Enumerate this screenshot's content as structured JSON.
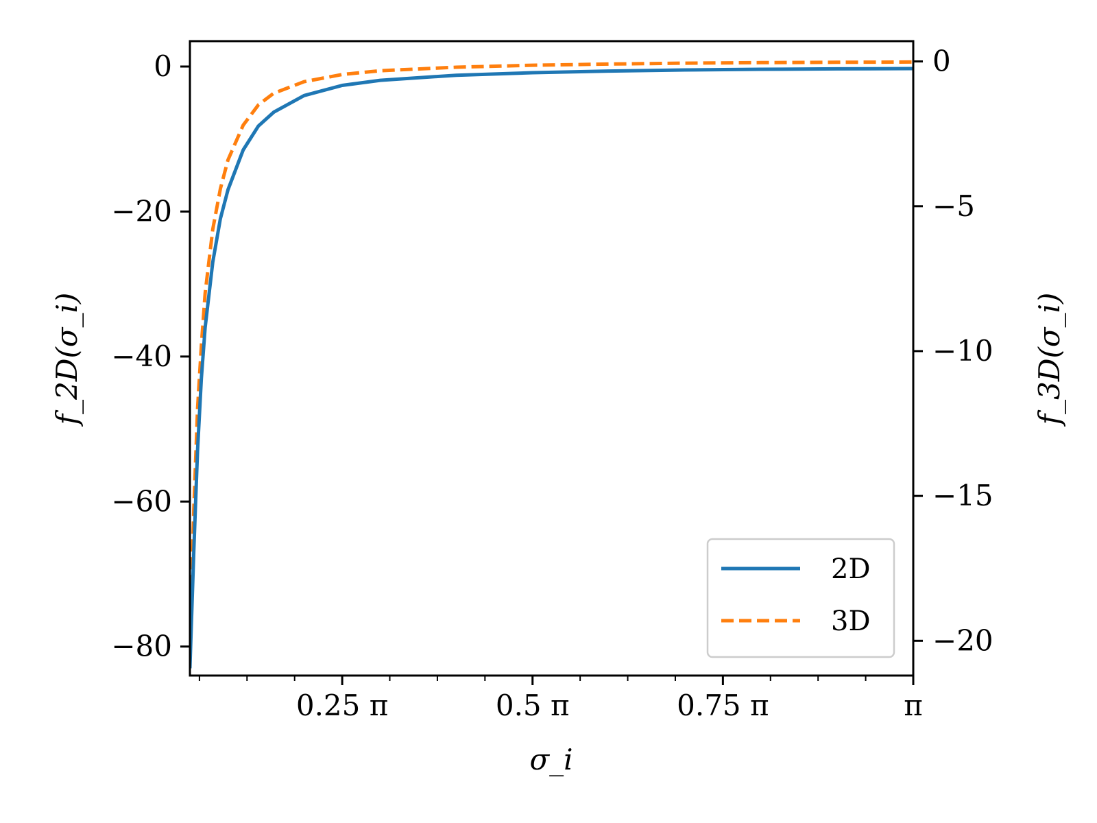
{
  "chart_data": {
    "type": "line",
    "title": "",
    "xlabel": "σ_i",
    "ylabel_left": "f_2D(σ_i)",
    "ylabel_right": "f_3D(σ_i)",
    "x_tick_labels": [
      "0.25 π",
      "0.5 π",
      "0.75 π",
      "π"
    ],
    "x_tick_values": [
      0.25,
      0.5,
      0.75,
      1.0
    ],
    "x_unit": "π",
    "xlim": [
      0.05,
      1.0
    ],
    "y_left_ticks": [
      0,
      -20,
      -40,
      -60,
      -80
    ],
    "y_left_tick_labels": [
      "0",
      "−20",
      "−40",
      "−60",
      "−80"
    ],
    "y_left_lim": [
      -84,
      3.5
    ],
    "y_right_ticks": [
      0,
      -5,
      -10,
      -15,
      -20
    ],
    "y_right_tick_labels": [
      "0",
      "−5",
      "−10",
      "−15",
      "−20"
    ],
    "y_right_lim": [
      -21.2,
      0.7
    ],
    "grid": false,
    "legend_position": "bottom-right",
    "series": [
      {
        "name": "2D",
        "axis": "left",
        "color": "#1f77b4",
        "style": "solid",
        "x": [
          0.05,
          0.055,
          0.06,
          0.065,
          0.07,
          0.08,
          0.09,
          0.1,
          0.12,
          0.14,
          0.16,
          0.2,
          0.25,
          0.3,
          0.4,
          0.5,
          0.6,
          0.7,
          0.8,
          0.9,
          1.0
        ],
        "y": [
          -83,
          -67,
          -53,
          -43,
          -36,
          -27,
          -21,
          -17,
          -11.5,
          -8.2,
          -6.3,
          -4.0,
          -2.6,
          -1.9,
          -1.2,
          -0.85,
          -0.62,
          -0.47,
          -0.38,
          -0.32,
          -0.28
        ]
      },
      {
        "name": "3D",
        "axis": "right",
        "color": "#ff7f0e",
        "style": "dashed",
        "x": [
          0.05,
          0.055,
          0.06,
          0.065,
          0.07,
          0.08,
          0.09,
          0.1,
          0.12,
          0.14,
          0.16,
          0.2,
          0.25,
          0.3,
          0.4,
          0.5,
          0.6,
          0.7,
          0.8,
          0.9,
          1.0
        ],
        "y": [
          -20,
          -15.5,
          -12,
          -9.8,
          -8.0,
          -5.8,
          -4.4,
          -3.4,
          -2.2,
          -1.5,
          -1.1,
          -0.7,
          -0.45,
          -0.32,
          -0.2,
          -0.13,
          -0.09,
          -0.06,
          -0.04,
          -0.03,
          -0.02
        ]
      }
    ]
  }
}
